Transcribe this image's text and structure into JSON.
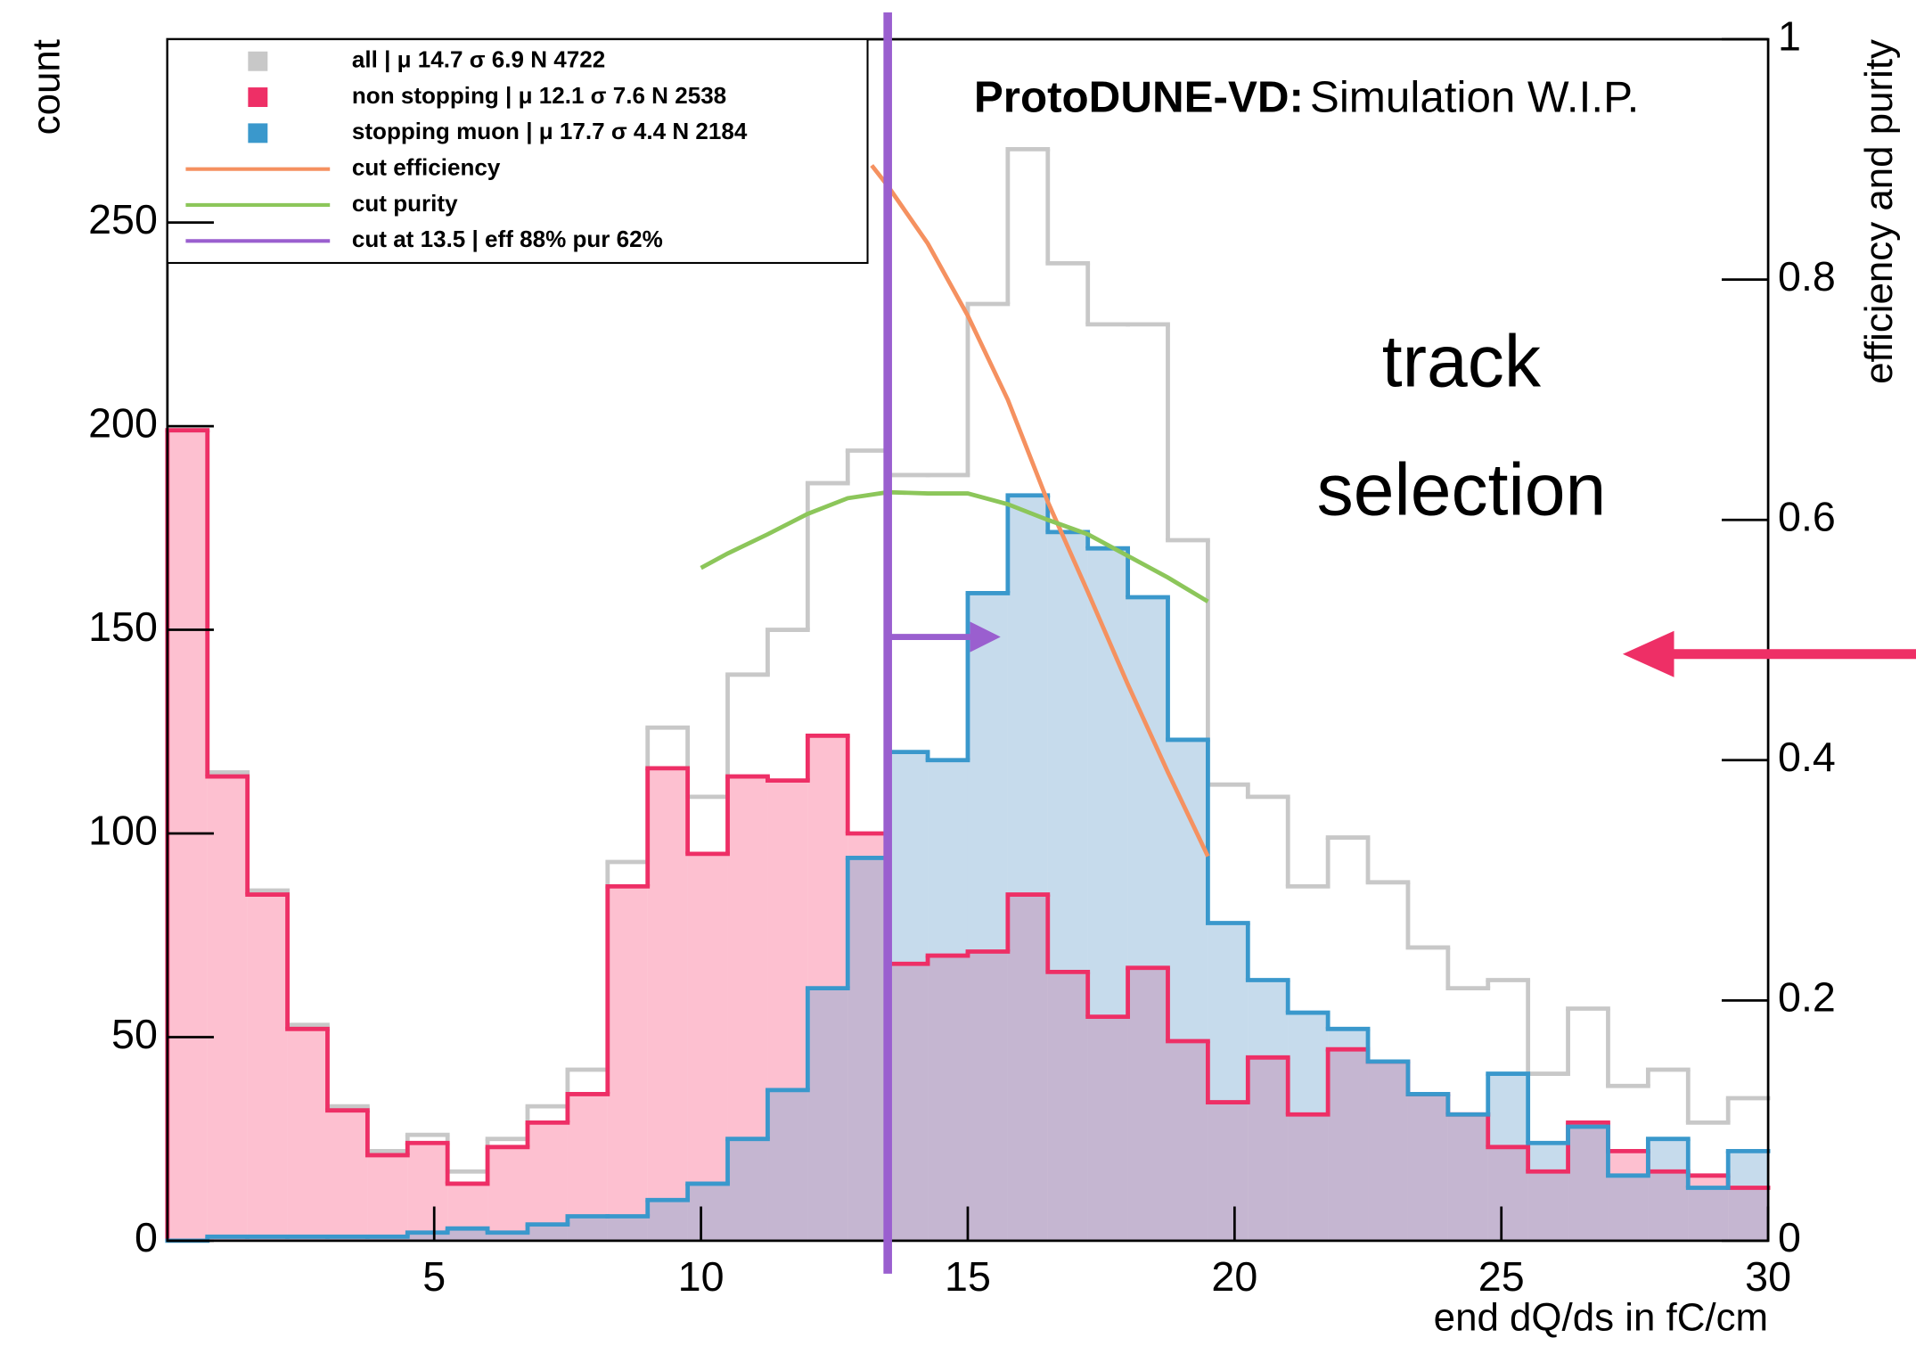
{
  "chart_data": {
    "type": "histogram",
    "title": "ProtoDUNE-VD:",
    "subtitle": "Simulation W.I.P.",
    "annotation": "track selection",
    "x_label": "end dQ/ds in fC/cm",
    "y_label": "count",
    "y2_label": "efficiency and purity",
    "bins": [
      0,
      0.75,
      1.5,
      2.25,
      3,
      3.75,
      4.5,
      5.25,
      6,
      6.75,
      7.5,
      8.25,
      9,
      9.75,
      10.5,
      11.25,
      12,
      12.75,
      13.5,
      14.25,
      15,
      15.75,
      16.5,
      17.25,
      18,
      18.75,
      19.5,
      20.25,
      21,
      21.75,
      22.5,
      23.25,
      24,
      24.75,
      25.5,
      26.25,
      27,
      27.75,
      28.5,
      29.25,
      30
    ],
    "series": [
      {
        "name": "all | μ 14.7 σ 6.9 N 4722",
        "color": "#c8c8c8",
        "fill": "none",
        "values": [
          199,
          115,
          86,
          53,
          33,
          22,
          26,
          17,
          25,
          33,
          42,
          93,
          126,
          109,
          139,
          150,
          186,
          194,
          188,
          188,
          230,
          268,
          240,
          225,
          225,
          172,
          112,
          109,
          87,
          99,
          88,
          72,
          62,
          64,
          41,
          57,
          38,
          42,
          29,
          35
        ]
      },
      {
        "name": "non stopping | μ 12.1 σ 7.6 N 2538",
        "color": "#ee2f66",
        "fill": "rgba(252,140,170,0.55)",
        "values": [
          199,
          114,
          85,
          52,
          32,
          21,
          24,
          14,
          23,
          29,
          36,
          87,
          116,
          95,
          114,
          113,
          124,
          100,
          68,
          70,
          71,
          85,
          66,
          55,
          67,
          49,
          34,
          45,
          31,
          47,
          44,
          36,
          31,
          23,
          17,
          29,
          22,
          17,
          16,
          13
        ]
      },
      {
        "name": "stopping muon | μ 17.7 σ 4.4 N 2184",
        "color": "#3a98cc",
        "fill": "rgba(120,170,210,0.42)",
        "values": [
          0,
          1,
          1,
          1,
          1,
          1,
          2,
          3,
          2,
          4,
          6,
          6,
          10,
          14,
          25,
          37,
          62,
          94,
          120,
          118,
          159,
          183,
          174,
          170,
          158,
          123,
          78,
          64,
          56,
          52,
          44,
          36,
          31,
          41,
          24,
          28,
          16,
          25,
          13,
          22
        ]
      }
    ],
    "curves": [
      {
        "name": "cut efficiency",
        "color": "#f59160",
        "axis": "y2",
        "x": [
          13.2,
          13.5,
          14.25,
          15,
          15.75,
          16.5,
          17.25,
          18,
          18.75,
          19.5
        ],
        "values": [
          0.895,
          0.878,
          0.83,
          0.77,
          0.7,
          0.615,
          0.54,
          0.463,
          0.39,
          0.32
        ]
      },
      {
        "name": "cut purity",
        "color": "#8cc65a",
        "axis": "y2",
        "x": [
          10,
          10.5,
          11.25,
          12,
          12.75,
          13.5,
          14.25,
          15,
          15.75,
          16.5,
          17.25,
          18,
          18.75,
          19.5
        ],
        "values": [
          0.56,
          0.572,
          0.588,
          0.605,
          0.618,
          0.623,
          0.622,
          0.622,
          0.613,
          0.6,
          0.588,
          0.57,
          0.552,
          0.532
        ]
      }
    ],
    "cut": {
      "name": "cut at 13.5 | eff 88% pur 62%",
      "x": 13.5,
      "color": "#9a5fcf"
    },
    "xlim": [
      0,
      30
    ],
    "xticks": [
      5,
      10,
      15,
      20,
      25,
      30
    ],
    "ylim": [
      0,
      295
    ],
    "yticks": [
      0,
      50,
      100,
      150,
      200,
      250
    ],
    "y2lim": [
      0,
      1
    ],
    "y2ticks": [
      0,
      0.2,
      0.4,
      0.6,
      0.8,
      1
    ]
  }
}
